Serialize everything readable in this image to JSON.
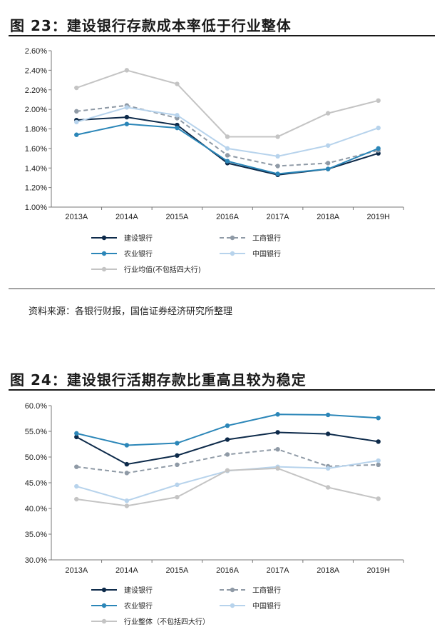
{
  "figures": [
    {
      "title": "图 23：建设银行存款成本率低于行业整体",
      "source": "资料来源：各银行财报，国信证券经济研究所整理",
      "chart_data": {
        "type": "line",
        "categories": [
          "2013A",
          "2014A",
          "2015A",
          "2016A",
          "2017A",
          "2018A",
          "2019H"
        ],
        "ylim": [
          1.0,
          2.6
        ],
        "yticks": [
          "1.00%",
          "1.20%",
          "1.40%",
          "1.60%",
          "1.80%",
          "2.00%",
          "2.20%",
          "2.40%",
          "2.60%"
        ],
        "grid": false,
        "legend_position": "bottom",
        "series": [
          {
            "name": "建设银行",
            "color": "#0d2a4a",
            "dash": "solid",
            "values": [
              1.89,
              1.92,
              1.84,
              1.45,
              1.33,
              1.39,
              1.55
            ]
          },
          {
            "name": "工商银行",
            "color": "#8f9aa6",
            "dash": "dashed",
            "values": [
              1.98,
              2.04,
              1.91,
              1.53,
              1.42,
              1.45,
              1.58
            ]
          },
          {
            "name": "农业银行",
            "color": "#2b86b8",
            "dash": "solid",
            "values": [
              1.74,
              1.85,
              1.81,
              1.47,
              1.34,
              1.39,
              1.6
            ]
          },
          {
            "name": "中国银行",
            "color": "#b7d3ec",
            "dash": "solid",
            "values": [
              1.87,
              2.02,
              1.94,
              1.6,
              1.52,
              1.63,
              1.81
            ]
          },
          {
            "name": "行业均值(不包括四大行)",
            "color": "#c4c4c4",
            "dash": "solid",
            "values": [
              2.22,
              2.4,
              2.26,
              1.72,
              1.72,
              1.96,
              2.09
            ]
          }
        ]
      }
    },
    {
      "title": "图 24：建设银行活期存款比重高且较为稳定",
      "chart_data": {
        "type": "line",
        "categories": [
          "2013A",
          "2014A",
          "2015A",
          "2016A",
          "2017A",
          "2018A",
          "2019H"
        ],
        "ylim": [
          30.0,
          60.0
        ],
        "yticks": [
          "30.0%",
          "35.0%",
          "40.0%",
          "45.0%",
          "50.0%",
          "55.0%",
          "60.0%"
        ],
        "grid": false,
        "legend_position": "bottom",
        "series": [
          {
            "name": "建设银行",
            "color": "#0d2a4a",
            "dash": "solid",
            "values": [
              53.9,
              48.6,
              50.3,
              53.4,
              54.8,
              54.5,
              53.0
            ]
          },
          {
            "name": "工商银行",
            "color": "#8f9aa6",
            "dash": "dashed",
            "values": [
              48.1,
              46.9,
              48.5,
              50.5,
              51.5,
              48.2,
              48.5
            ]
          },
          {
            "name": "农业银行",
            "color": "#2b86b8",
            "dash": "solid",
            "values": [
              54.6,
              52.3,
              52.7,
              56.1,
              58.3,
              58.2,
              57.6
            ]
          },
          {
            "name": "中国银行",
            "color": "#b7d3ec",
            "dash": "solid",
            "values": [
              44.3,
              41.5,
              44.6,
              47.3,
              48.1,
              47.8,
              49.3
            ]
          },
          {
            "name": "行业整体（不包括四大行）",
            "color": "#c4c4c4",
            "dash": "solid",
            "values": [
              41.8,
              40.5,
              42.2,
              47.4,
              47.8,
              44.1,
              41.9
            ]
          }
        ]
      }
    }
  ]
}
